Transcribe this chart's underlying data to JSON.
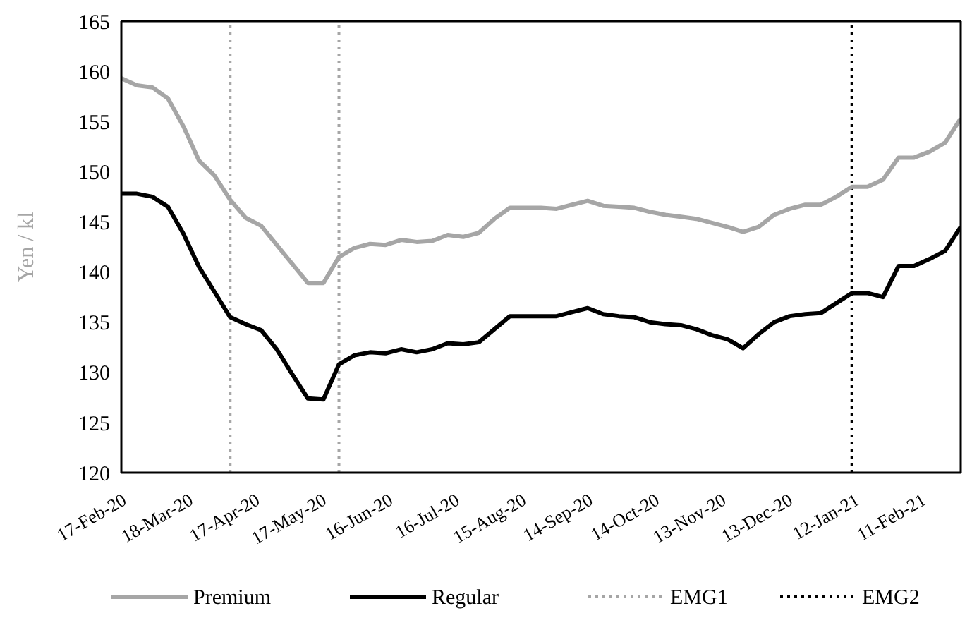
{
  "chart_data": {
    "type": "line",
    "ylabel": "Yen / kl",
    "x": [
      "2020-02-17",
      "2020-02-24",
      "2020-03-02",
      "2020-03-09",
      "2020-03-16",
      "2020-03-23",
      "2020-03-30",
      "2020-04-06",
      "2020-04-13",
      "2020-04-20",
      "2020-04-27",
      "2020-05-04",
      "2020-05-11",
      "2020-05-18",
      "2020-05-25",
      "2020-06-01",
      "2020-06-08",
      "2020-06-15",
      "2020-06-22",
      "2020-06-29",
      "2020-07-06",
      "2020-07-13",
      "2020-07-20",
      "2020-07-27",
      "2020-08-03",
      "2020-08-10",
      "2020-08-17",
      "2020-08-24",
      "2020-08-31",
      "2020-09-07",
      "2020-09-14",
      "2020-09-21",
      "2020-09-28",
      "2020-10-05",
      "2020-10-12",
      "2020-10-19",
      "2020-10-26",
      "2020-11-02",
      "2020-11-09",
      "2020-11-16",
      "2020-11-23",
      "2020-11-30",
      "2020-12-07",
      "2020-12-14",
      "2020-12-21",
      "2020-12-28",
      "2021-01-04",
      "2021-01-11",
      "2021-01-18",
      "2021-01-25",
      "2021-02-01",
      "2021-02-08",
      "2021-02-15",
      "2021-02-22",
      "2021-03-01"
    ],
    "series": [
      {
        "name": "Premium",
        "color": "#a6a6a6",
        "values": [
          159.3,
          158.6,
          158.4,
          157.3,
          154.5,
          151.1,
          149.6,
          147.2,
          145.4,
          144.6,
          142.7,
          140.8,
          138.9,
          138.9,
          141.5,
          142.4,
          142.8,
          142.7,
          143.2,
          143.0,
          143.1,
          143.7,
          143.5,
          143.9,
          145.3,
          146.4,
          146.4,
          146.4,
          146.3,
          146.7,
          147.1,
          146.6,
          146.5,
          146.4,
          146.0,
          145.7,
          145.5,
          145.3,
          144.9,
          144.5,
          144.0,
          144.5,
          145.7,
          146.3,
          146.7,
          146.7,
          147.5,
          148.5,
          148.5,
          149.2,
          151.4,
          151.4,
          152.0,
          152.9,
          155.3
        ]
      },
      {
        "name": "Regular",
        "color": "#000000",
        "values": [
          147.8,
          147.8,
          147.5,
          146.5,
          143.8,
          140.5,
          138.0,
          135.5,
          134.8,
          134.2,
          132.3,
          129.8,
          127.4,
          127.3,
          130.8,
          131.7,
          132.0,
          131.9,
          132.3,
          132.0,
          132.3,
          132.9,
          132.8,
          133.0,
          134.3,
          135.6,
          135.6,
          135.6,
          135.6,
          136.0,
          136.4,
          135.8,
          135.6,
          135.5,
          135.0,
          134.8,
          134.7,
          134.3,
          133.7,
          133.3,
          132.4,
          133.8,
          135.0,
          135.6,
          135.8,
          135.9,
          136.9,
          137.9,
          137.9,
          137.5,
          140.6,
          140.6,
          141.3,
          142.1,
          144.5
        ]
      }
    ],
    "ref_lines": [
      {
        "axis": "x",
        "value": "2020-04-06",
        "label": "EMG1",
        "color": "#a6a6a6",
        "line_style": "dotted"
      },
      {
        "axis": "x",
        "value": "2020-05-25",
        "label": null,
        "color": "#a6a6a6",
        "line_style": "dotted"
      },
      {
        "axis": "x",
        "value": "2021-01-11",
        "label": "EMG2",
        "color": "#000000",
        "line_style": "dotted"
      }
    ],
    "xlim": [
      "2020-02-17",
      "2021-03-01"
    ],
    "xticks": [
      {
        "value": "2020-02-17",
        "label": "17-Feb-20"
      },
      {
        "value": "2020-03-18",
        "label": "18-Mar-20"
      },
      {
        "value": "2020-04-17",
        "label": "17-Apr-20"
      },
      {
        "value": "2020-05-17",
        "label": "17-May-20"
      },
      {
        "value": "2020-06-16",
        "label": "16-Jun-20"
      },
      {
        "value": "2020-07-16",
        "label": "16-Jul-20"
      },
      {
        "value": "2020-08-15",
        "label": "15-Aug-20"
      },
      {
        "value": "2020-09-14",
        "label": "14-Sep-20"
      },
      {
        "value": "2020-10-14",
        "label": "14-Oct-20"
      },
      {
        "value": "2020-11-13",
        "label": "13-Nov-20"
      },
      {
        "value": "2020-12-13",
        "label": "13-Dec-20"
      },
      {
        "value": "2021-01-12",
        "label": "12-Jan-21"
      },
      {
        "value": "2021-02-11",
        "label": "11-Feb-21"
      }
    ],
    "ylim": [
      120,
      165
    ],
    "yticks": [
      120,
      125,
      130,
      135,
      140,
      145,
      150,
      155,
      160,
      165
    ],
    "grid": false,
    "legend": "bottom",
    "marker": "none",
    "line_style": "solid"
  }
}
